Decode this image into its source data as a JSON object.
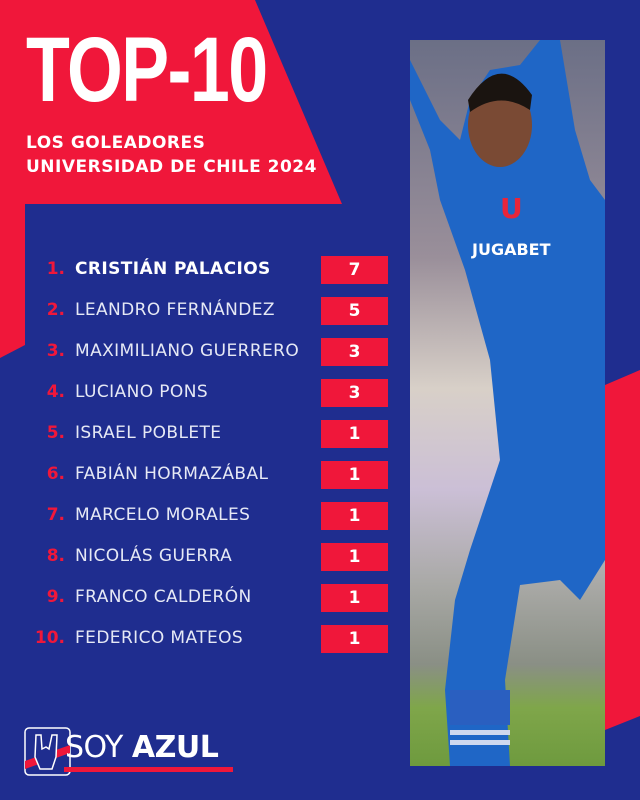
{
  "header": {
    "title": "TOP-10",
    "subtitle_line1": "LOS GOLEADORES",
    "subtitle_line2": "UNIVERSIDAD DE CHILE 2024"
  },
  "scorers": [
    {
      "rank": "1.",
      "name": "CRISTIÁN PALACIOS",
      "goals": "7"
    },
    {
      "rank": "2.",
      "name": "LEANDRO FERNÁNDEZ",
      "goals": "5"
    },
    {
      "rank": "3.",
      "name": "MAXIMILIANO GUERRERO",
      "goals": "3"
    },
    {
      "rank": "4.",
      "name": "LUCIANO PONS",
      "goals": "3"
    },
    {
      "rank": "5.",
      "name": "ISRAEL POBLETE",
      "goals": "1"
    },
    {
      "rank": "6.",
      "name": "FABIÁN HORMAZÁBAL",
      "goals": "1"
    },
    {
      "rank": "7.",
      "name": "MARCELO MORALES",
      "goals": "1"
    },
    {
      "rank": "8.",
      "name": "NICOLÁS GUERRA",
      "goals": "1"
    },
    {
      "rank": "9.",
      "name": "FRANCO CALDERÓN",
      "goals": "1"
    },
    {
      "rank": "10.",
      "name": "FEDERICO MATEOS",
      "goals": "1"
    }
  ],
  "photo": {
    "jersey_text": "JUGABET",
    "crest_letter": "U"
  },
  "brand": {
    "name_light": "SOY",
    "name_bold": "AZUL",
    "icon": "rock-hand-icon"
  },
  "colors": {
    "blue": "#1f2d8f",
    "red": "#f0173a",
    "white": "#ffffff"
  }
}
